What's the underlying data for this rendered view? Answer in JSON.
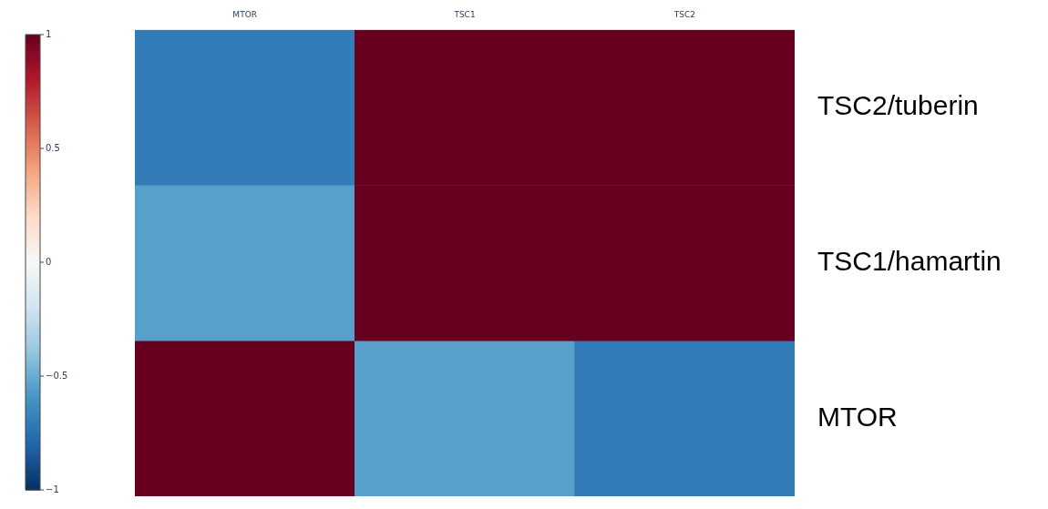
{
  "chart_data": {
    "type": "heatmap",
    "categories": [
      "MTOR",
      "TSC1",
      "TSC2"
    ],
    "y_categories": [
      "TSC2/tuberin",
      "TSC1/hamartin",
      "MTOR"
    ],
    "cells": [
      [
        -0.7,
        1,
        1
      ],
      [
        -0.55,
        1,
        1
      ],
      [
        1,
        -0.55,
        -0.7
      ]
    ],
    "clim": [
      -1,
      1
    ],
    "cticks": [
      1,
      0.5,
      0,
      {
        "value": -0.5,
        "label": "−0.5"
      },
      {
        "value": -1,
        "label": "−1"
      }
    ]
  }
}
